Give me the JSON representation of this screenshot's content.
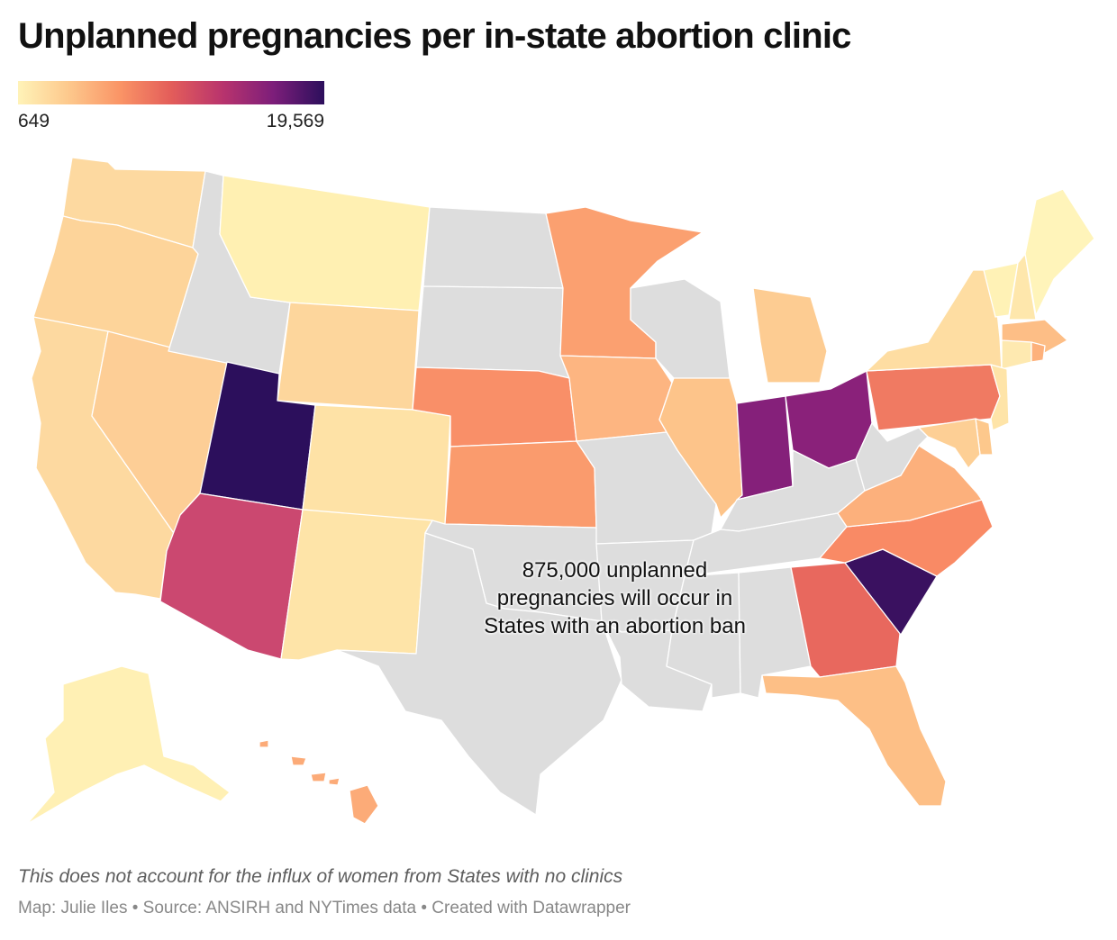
{
  "title": "Unplanned pregnancies per in-state abortion clinic",
  "legend": {
    "min_label": "649",
    "max_label": "19,569",
    "colors": [
      "#fff3b8",
      "#fdc88c",
      "#fa9466",
      "#e35d5a",
      "#b9346d",
      "#7d1e7a",
      "#2c0f5c"
    ]
  },
  "no_data_color": "#dddddd",
  "annotation": {
    "lines": [
      "875,000 unplanned",
      "pregnancies will occur in",
      "States with an abortion ban"
    ]
  },
  "note": "This does not account for the influx of women from States with no clinics",
  "credits": "Map: Julie Iles • Source: ANSIRH and NYTimes data • Created with Datawrapper",
  "chart_data": {
    "type": "choropleth",
    "scale": {
      "min": 649,
      "max": 19569
    },
    "states": [
      {
        "id": "WA",
        "color": "#fdd9a0"
      },
      {
        "id": "OR",
        "color": "#fdd49a"
      },
      {
        "id": "CA",
        "color": "#fdd9a0"
      },
      {
        "id": "ID",
        "color": "#dddddd"
      },
      {
        "id": "NV",
        "color": "#fdce96"
      },
      {
        "id": "MT",
        "color": "#fff0b2"
      },
      {
        "id": "WY",
        "color": "#fdd69c"
      },
      {
        "id": "UT",
        "color": "#2c0f5c"
      },
      {
        "id": "AZ",
        "color": "#cb4870"
      },
      {
        "id": "CO",
        "color": "#fee2a6"
      },
      {
        "id": "NM",
        "color": "#fee4a8"
      },
      {
        "id": "ND",
        "color": "#dddddd"
      },
      {
        "id": "SD",
        "color": "#dddddd"
      },
      {
        "id": "NE",
        "color": "#f98f68"
      },
      {
        "id": "KS",
        "color": "#fa9b6d"
      },
      {
        "id": "OK",
        "color": "#dddddd"
      },
      {
        "id": "TX",
        "color": "#dddddd"
      },
      {
        "id": "MN",
        "color": "#fba070"
      },
      {
        "id": "IA",
        "color": "#fdb581"
      },
      {
        "id": "MO",
        "color": "#dddddd"
      },
      {
        "id": "AR",
        "color": "#dddddd"
      },
      {
        "id": "LA",
        "color": "#dddddd"
      },
      {
        "id": "WI",
        "color": "#dddddd"
      },
      {
        "id": "IL",
        "color": "#fdc48a"
      },
      {
        "id": "MI",
        "color": "#fdcc92"
      },
      {
        "id": "IN",
        "color": "#85207a"
      },
      {
        "id": "OH",
        "color": "#8a217a"
      },
      {
        "id": "KY",
        "color": "#dddddd"
      },
      {
        "id": "TN",
        "color": "#dddddd"
      },
      {
        "id": "MS",
        "color": "#dddddd"
      },
      {
        "id": "AL",
        "color": "#dddddd"
      },
      {
        "id": "GA",
        "color": "#e8685e"
      },
      {
        "id": "FL",
        "color": "#fdbf86"
      },
      {
        "id": "SC",
        "color": "#3a1160"
      },
      {
        "id": "NC",
        "color": "#f98a65"
      },
      {
        "id": "VA",
        "color": "#fcb07c"
      },
      {
        "id": "WV",
        "color": "#dddddd"
      },
      {
        "id": "PA",
        "color": "#f07a62"
      },
      {
        "id": "NY",
        "color": "#fedda2"
      },
      {
        "id": "VT",
        "color": "#fff2b6"
      },
      {
        "id": "NH",
        "color": "#fee7ac"
      },
      {
        "id": "ME",
        "color": "#fff4ba"
      },
      {
        "id": "MA",
        "color": "#fdbe86"
      },
      {
        "id": "CT",
        "color": "#fee9b0"
      },
      {
        "id": "RI",
        "color": "#fdb17c"
      },
      {
        "id": "NJ",
        "color": "#fee4a8"
      },
      {
        "id": "DE",
        "color": "#fdc88c"
      },
      {
        "id": "MD",
        "color": "#fdcf95"
      },
      {
        "id": "AK",
        "color": "#fff0b4"
      },
      {
        "id": "HI",
        "color": "#fcab78"
      }
    ]
  }
}
